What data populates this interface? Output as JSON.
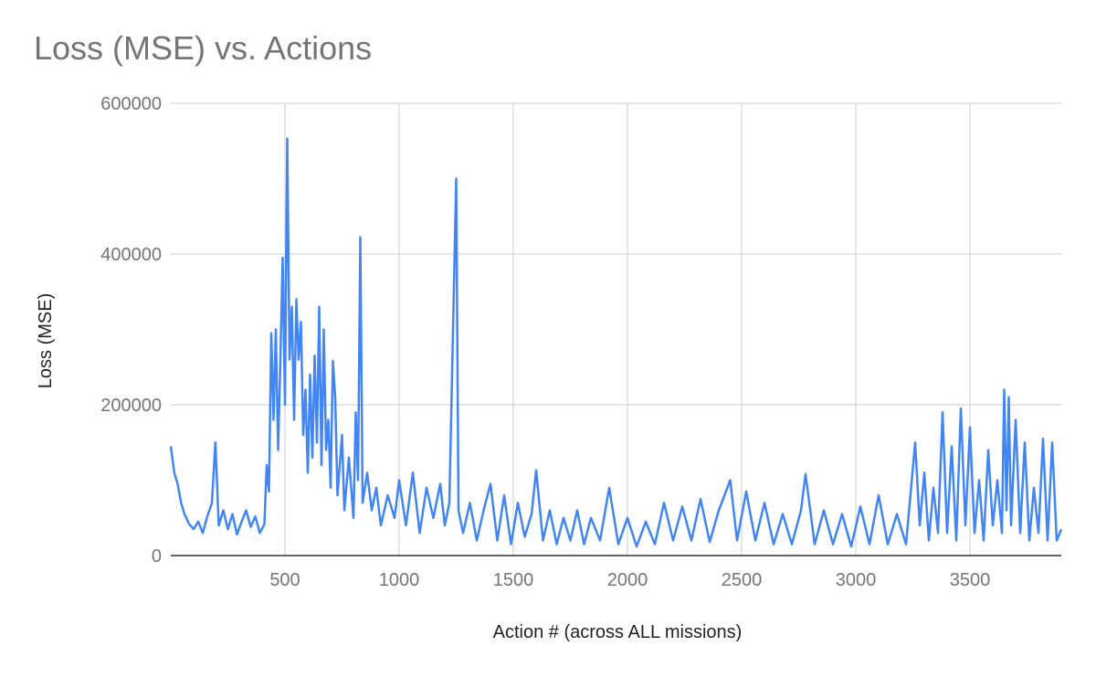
{
  "chart_data": {
    "type": "line",
    "title": "Loss (MSE) vs. Actions",
    "xlabel": "Action # (across ALL missions)",
    "ylabel": "Loss (MSE)",
    "xlim": [
      0,
      3900
    ],
    "ylim": [
      0,
      600000
    ],
    "x_ticks": [
      500,
      1000,
      1500,
      2000,
      2500,
      3000,
      3500
    ],
    "x_tick_labels": [
      "500",
      "1000",
      "1500",
      "2000",
      "2500",
      "3000",
      "3500"
    ],
    "y_ticks": [
      0,
      200000,
      400000,
      600000
    ],
    "y_tick_labels": [
      "0",
      "200000",
      "400000",
      "600000"
    ],
    "grid": true,
    "legend": "none",
    "series_color": "#4285f4",
    "series": [
      {
        "points": [
          [
            0,
            145000
          ],
          [
            15,
            110000
          ],
          [
            30,
            95000
          ],
          [
            45,
            70000
          ],
          [
            60,
            55000
          ],
          [
            80,
            42000
          ],
          [
            100,
            35000
          ],
          [
            120,
            45000
          ],
          [
            140,
            30000
          ],
          [
            160,
            52000
          ],
          [
            180,
            70000
          ],
          [
            195,
            150000
          ],
          [
            210,
            40000
          ],
          [
            230,
            60000
          ],
          [
            250,
            35000
          ],
          [
            270,
            55000
          ],
          [
            290,
            28000
          ],
          [
            310,
            45000
          ],
          [
            330,
            60000
          ],
          [
            350,
            38000
          ],
          [
            370,
            52000
          ],
          [
            390,
            30000
          ],
          [
            410,
            42000
          ],
          [
            420,
            120000
          ],
          [
            430,
            85000
          ],
          [
            440,
            295000
          ],
          [
            450,
            180000
          ],
          [
            460,
            300000
          ],
          [
            470,
            140000
          ],
          [
            480,
            260000
          ],
          [
            490,
            395000
          ],
          [
            500,
            200000
          ],
          [
            510,
            553000
          ],
          [
            520,
            260000
          ],
          [
            530,
            330000
          ],
          [
            540,
            180000
          ],
          [
            550,
            340000
          ],
          [
            560,
            260000
          ],
          [
            570,
            310000
          ],
          [
            580,
            160000
          ],
          [
            590,
            220000
          ],
          [
            600,
            110000
          ],
          [
            610,
            240000
          ],
          [
            620,
            130000
          ],
          [
            630,
            265000
          ],
          [
            640,
            150000
          ],
          [
            650,
            330000
          ],
          [
            660,
            120000
          ],
          [
            670,
            300000
          ],
          [
            680,
            140000
          ],
          [
            690,
            180000
          ],
          [
            700,
            90000
          ],
          [
            710,
            258000
          ],
          [
            720,
            210000
          ],
          [
            730,
            80000
          ],
          [
            750,
            160000
          ],
          [
            760,
            60000
          ],
          [
            780,
            130000
          ],
          [
            800,
            50000
          ],
          [
            810,
            190000
          ],
          [
            820,
            100000
          ],
          [
            830,
            422000
          ],
          [
            840,
            70000
          ],
          [
            860,
            110000
          ],
          [
            880,
            60000
          ],
          [
            900,
            90000
          ],
          [
            920,
            40000
          ],
          [
            950,
            80000
          ],
          [
            980,
            50000
          ],
          [
            1000,
            100000
          ],
          [
            1030,
            40000
          ],
          [
            1060,
            110000
          ],
          [
            1090,
            30000
          ],
          [
            1120,
            90000
          ],
          [
            1150,
            50000
          ],
          [
            1180,
            95000
          ],
          [
            1200,
            40000
          ],
          [
            1220,
            70000
          ],
          [
            1250,
            500000
          ],
          [
            1260,
            60000
          ],
          [
            1280,
            30000
          ],
          [
            1310,
            70000
          ],
          [
            1340,
            20000
          ],
          [
            1370,
            60000
          ],
          [
            1400,
            95000
          ],
          [
            1430,
            20000
          ],
          [
            1460,
            80000
          ],
          [
            1490,
            15000
          ],
          [
            1520,
            70000
          ],
          [
            1550,
            25000
          ],
          [
            1580,
            55000
          ],
          [
            1600,
            113000
          ],
          [
            1630,
            20000
          ],
          [
            1660,
            60000
          ],
          [
            1690,
            15000
          ],
          [
            1720,
            50000
          ],
          [
            1750,
            20000
          ],
          [
            1780,
            60000
          ],
          [
            1810,
            15000
          ],
          [
            1840,
            50000
          ],
          [
            1880,
            20000
          ],
          [
            1920,
            90000
          ],
          [
            1960,
            15000
          ],
          [
            2000,
            50000
          ],
          [
            2040,
            12000
          ],
          [
            2080,
            45000
          ],
          [
            2120,
            15000
          ],
          [
            2160,
            70000
          ],
          [
            2200,
            20000
          ],
          [
            2240,
            65000
          ],
          [
            2280,
            20000
          ],
          [
            2320,
            75000
          ],
          [
            2360,
            18000
          ],
          [
            2400,
            60000
          ],
          [
            2450,
            100000
          ],
          [
            2480,
            20000
          ],
          [
            2520,
            85000
          ],
          [
            2560,
            20000
          ],
          [
            2600,
            70000
          ],
          [
            2640,
            15000
          ],
          [
            2680,
            55000
          ],
          [
            2720,
            15000
          ],
          [
            2760,
            60000
          ],
          [
            2780,
            108000
          ],
          [
            2820,
            15000
          ],
          [
            2860,
            60000
          ],
          [
            2900,
            15000
          ],
          [
            2940,
            55000
          ],
          [
            2980,
            12000
          ],
          [
            3020,
            65000
          ],
          [
            3060,
            15000
          ],
          [
            3100,
            80000
          ],
          [
            3140,
            15000
          ],
          [
            3180,
            55000
          ],
          [
            3220,
            15000
          ],
          [
            3260,
            150000
          ],
          [
            3280,
            40000
          ],
          [
            3300,
            110000
          ],
          [
            3320,
            20000
          ],
          [
            3340,
            90000
          ],
          [
            3360,
            30000
          ],
          [
            3380,
            190000
          ],
          [
            3400,
            30000
          ],
          [
            3420,
            145000
          ],
          [
            3440,
            20000
          ],
          [
            3460,
            195000
          ],
          [
            3480,
            40000
          ],
          [
            3500,
            170000
          ],
          [
            3520,
            30000
          ],
          [
            3540,
            100000
          ],
          [
            3560,
            20000
          ],
          [
            3580,
            140000
          ],
          [
            3600,
            40000
          ],
          [
            3620,
            100000
          ],
          [
            3640,
            30000
          ],
          [
            3650,
            220000
          ],
          [
            3660,
            60000
          ],
          [
            3670,
            210000
          ],
          [
            3680,
            40000
          ],
          [
            3700,
            180000
          ],
          [
            3720,
            30000
          ],
          [
            3740,
            150000
          ],
          [
            3760,
            20000
          ],
          [
            3780,
            90000
          ],
          [
            3800,
            30000
          ],
          [
            3820,
            155000
          ],
          [
            3840,
            20000
          ],
          [
            3860,
            150000
          ],
          [
            3880,
            20000
          ],
          [
            3900,
            35000
          ]
        ]
      }
    ]
  }
}
